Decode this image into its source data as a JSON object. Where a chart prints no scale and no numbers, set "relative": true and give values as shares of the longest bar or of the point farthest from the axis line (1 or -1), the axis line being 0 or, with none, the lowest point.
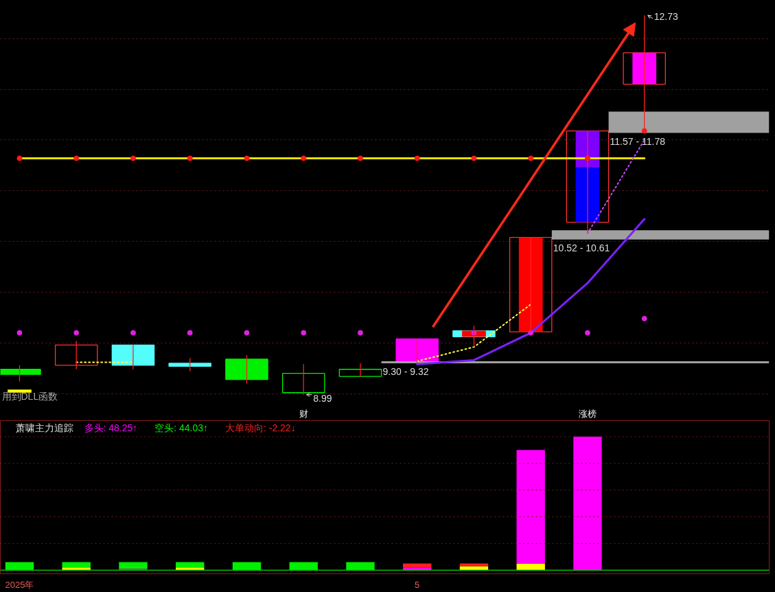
{
  "chart_data": [
    {
      "type": "candlestick",
      "categories": [
        null,
        null,
        null,
        null,
        null,
        "财",
        null,
        null,
        null,
        null,
        "涨榜",
        null
      ],
      "tick_labels": "x",
      "yticks": [
        {
          "value": 9,
          "label": null
        },
        {
          "value": 9.5,
          "label": null
        },
        {
          "value": 10,
          "label": null
        },
        {
          "value": 10.5,
          "label": null
        },
        {
          "value": 11,
          "label": null
        },
        {
          "value": 11.5,
          "label": null
        },
        {
          "value": 12,
          "label": null
        },
        {
          "value": 12.5,
          "label": null
        }
      ],
      "grid": "y",
      "series": [
        {
          "type": "candlestick",
          "color": "#ff2020",
          "colors": [
            "#00f000",
            "#ff3232",
            "#54fcfc",
            "#54fcfc",
            "#00f000",
            "#00f000",
            "#00f000",
            "#ff00ff",
            "#54fcfc",
            "#ff3232",
            "#ff3232",
            "#ff3232"
          ],
          "ohlc": [
            [
              9.24,
              9.28,
              9.12,
              9.19
            ],
            [
              9.28,
              9.52,
              9.24,
              9.48
            ],
            [
              9.48,
              9.48,
              9.24,
              9.28
            ],
            [
              9.3,
              9.35,
              9.22,
              9.27
            ],
            [
              9.34,
              9.38,
              9.1,
              9.14
            ],
            [
              9.01,
              9.29,
              8.99,
              9.2
            ],
            [
              9.17,
              9.3,
              9.16,
              9.24
            ],
            [
              9.54,
              9.54,
              9.3,
              9.32
            ],
            [
              9.62,
              9.67,
              9.46,
              9.56
            ],
            [
              9.61,
              10.54,
              9.61,
              10.54
            ],
            [
              10.69,
              11.59,
              10.58,
              11.59
            ],
            [
              12.05,
              12.73,
              11.59,
              12.36
            ]
          ]
        },
        {
          "type": "bar",
          "color": "#ffff00",
          "base": [
            9.01,
            null,
            null,
            null,
            null,
            null,
            null,
            null,
            null,
            null,
            null,
            null
          ],
          "values": [
            0.03,
            null,
            null,
            null,
            null,
            null,
            null,
            null,
            null,
            null,
            null,
            null
          ]
        },
        {
          "type": "bar",
          "color": "#ff0000",
          "base": [
            null,
            null,
            null,
            null,
            null,
            null,
            null,
            null,
            9.56,
            9.61,
            null,
            null
          ],
          "values": [
            null,
            null,
            null,
            null,
            null,
            null,
            null,
            null,
            0.06,
            0.93,
            null,
            null
          ]
        },
        {
          "type": "bar",
          "color": "#0000ff",
          "base": [
            null,
            null,
            null,
            null,
            null,
            null,
            null,
            null,
            null,
            null,
            10.69,
            null
          ],
          "values": [
            null,
            null,
            null,
            null,
            null,
            null,
            null,
            null,
            null,
            null,
            0.54,
            null
          ]
        },
        {
          "type": "bar",
          "color": "#8000ff",
          "base": [
            null,
            null,
            null,
            null,
            null,
            null,
            null,
            null,
            null,
            null,
            11.23,
            null
          ],
          "values": [
            null,
            null,
            null,
            null,
            null,
            null,
            null,
            null,
            null,
            null,
            0.36,
            null
          ]
        },
        {
          "type": "bar",
          "color": "#ff00ff",
          "base": [
            null,
            null,
            null,
            null,
            null,
            null,
            null,
            null,
            null,
            null,
            null,
            12.05
          ],
          "values": [
            null,
            null,
            null,
            null,
            null,
            null,
            null,
            null,
            null,
            null,
            null,
            0.31
          ]
        },
        {
          "type": "line",
          "color": "#e8e000",
          "line_style": "solid",
          "values": [
            11.32,
            11.32,
            11.32,
            11.32,
            11.32,
            11.32,
            11.32,
            11.32,
            11.32,
            11.32,
            11.32,
            11.32
          ]
        },
        {
          "type": "line",
          "color": "#ffff40",
          "line_style": "dotted",
          "values": [
            null,
            9.31,
            9.31,
            null,
            null,
            null,
            null,
            9.32,
            9.46,
            9.88,
            null,
            null
          ]
        },
        {
          "type": "line",
          "color": "#c84cff",
          "line_style": "dotted",
          "values": [
            null,
            null,
            null,
            null,
            null,
            null,
            null,
            null,
            null,
            null,
            10.58,
            11.5
          ]
        },
        {
          "type": "line",
          "color": "#7b22ff",
          "line_style": "solid",
          "values": [
            null,
            null,
            null,
            null,
            null,
            null,
            null,
            9.29,
            9.33,
            9.6,
            10.09,
            10.72
          ]
        },
        {
          "type": "scatter",
          "color": "#ff1a1a",
          "marker": "circle",
          "values": [
            11.32,
            11.32,
            11.32,
            11.32,
            11.32,
            11.32,
            11.32,
            11.32,
            11.32,
            11.32,
            11.32,
            11.59
          ]
        },
        {
          "type": "scatter",
          "color": "#e020e0",
          "marker": "circle",
          "values": [
            9.6,
            9.6,
            9.6,
            9.6,
            9.6,
            9.6,
            9.6,
            null,
            9.6,
            9.6,
            9.6,
            9.74
          ]
        }
      ],
      "bands": [
        {
          "axis": "y",
          "from": 9.3,
          "to": 9.32,
          "label": "9.30 - 9.32",
          "color": "#a0a0a0"
        },
        {
          "axis": "y",
          "from": 10.52,
          "to": 10.61,
          "label": "10.52 - 10.61",
          "color": "#a0a0a0"
        },
        {
          "axis": "y",
          "from": 11.57,
          "to": 11.78,
          "label": "11.57 - 11.78",
          "color": "#a0a0a0"
        }
      ],
      "annotations": [
        "用到DLL函数",
        "12.73",
        {
          "text": "8.99",
          "y": 8.99
        }
      ]
    },
    {
      "type": "bar",
      "stacked": true,
      "relative": true,
      "title": "萧啸主力追踪",
      "categories": [
        "2025年",
        null,
        null,
        null,
        null,
        null,
        null,
        "5",
        null,
        null,
        null,
        null
      ],
      "tick_labels": "x",
      "legend": "top left",
      "ref_lines": [
        {
          "axis": "y",
          "value": 0.2,
          "color": "#701c1c",
          "line_style": "dotted"
        },
        {
          "axis": "y",
          "value": 0.4,
          "color": "#701c1c",
          "line_style": "dotted"
        },
        {
          "axis": "y",
          "value": 0.6,
          "color": "#701c1c",
          "line_style": "dotted"
        },
        {
          "axis": "y",
          "value": 0.8,
          "color": "#701c1c",
          "line_style": "dotted"
        },
        {
          "axis": "y",
          "value": 1.0,
          "color": "#701c1c",
          "line_style": "dotted"
        }
      ],
      "series": [
        {
          "color": "#ffff00",
          "values": [
            null,
            0.02,
            null,
            0.02,
            null,
            null,
            null,
            null,
            0.03,
            0.05,
            null,
            null
          ]
        },
        {
          "name": "多头: 48.25↑",
          "color": "#ff00ff",
          "values": [
            null,
            null,
            0.01,
            null,
            null,
            null,
            null,
            0.02,
            null,
            0.85,
            1,
            null
          ]
        },
        {
          "name": "空头: 44.03↑",
          "color": "#00f000",
          "values": [
            0.06,
            0.04,
            0.05,
            0.04,
            0.06,
            0.06,
            0.06,
            null,
            null,
            null,
            null,
            null
          ]
        },
        {
          "name": "大单动向: -2.22↓",
          "color": "#ff2020",
          "values": [
            null,
            null,
            null,
            null,
            null,
            null,
            null,
            0.03,
            0.02,
            null,
            null,
            null
          ]
        }
      ]
    }
  ]
}
